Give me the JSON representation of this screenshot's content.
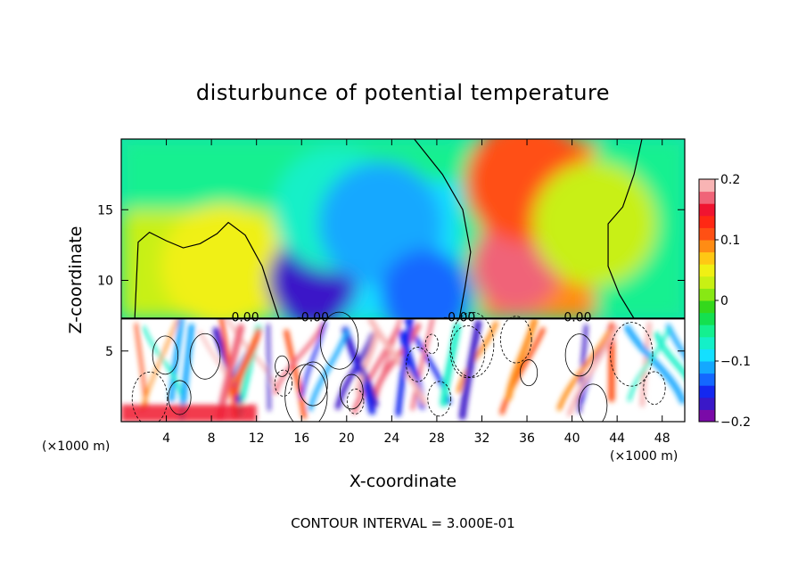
{
  "chart_data": {
    "type": "heatmap",
    "title": "disturbunce of potential temperature",
    "xlabel": "X-coordinate",
    "ylabel": "Z-coordinate",
    "x_unit_label": "(×1000 m)",
    "x_unit_label_right": "(×1000 m)",
    "xlim": [
      0,
      50
    ],
    "ylim": [
      0,
      20
    ],
    "xticks": [
      4,
      8,
      12,
      16,
      20,
      24,
      28,
      32,
      36,
      40,
      44,
      48
    ],
    "yticks": [
      5,
      10,
      15
    ],
    "colorbar": {
      "min": -0.2,
      "max": 0.2,
      "tick_labels": [
        "0.2",
        "0.1",
        "0",
        "−0.1",
        "−0.2"
      ],
      "tick_values": [
        0.2,
        0.1,
        0,
        -0.1,
        -0.2
      ],
      "colors": [
        "#7a0aa8",
        "#3a18c8",
        "#1428f0",
        "#1468ff",
        "#14a8ff",
        "#14e0ff",
        "#14f0c8",
        "#14f090",
        "#14e050",
        "#34d81c",
        "#88e814",
        "#c8f014",
        "#f0f014",
        "#ffc814",
        "#ff8c14",
        "#ff5014",
        "#ff2814",
        "#f01430",
        "#f06478",
        "#f8b4b4"
      ]
    },
    "contour_labels": [
      "0.00",
      "-0.00",
      "-0.00",
      "0.00"
    ],
    "annotation": "CONTOUR INTERVAL = 3.000E-01",
    "fields": {
      "upper_layer_anomalies": [
        {
          "x": 9,
          "z": 11,
          "value": 0.05
        },
        {
          "x": 17,
          "z": 10,
          "value": -0.17
        },
        {
          "x": 19,
          "z": 15,
          "value": -0.08
        },
        {
          "x": 23,
          "z": 14,
          "value": -0.12
        },
        {
          "x": 27,
          "z": 9,
          "value": -0.14
        },
        {
          "x": 35,
          "z": 11,
          "value": 0.17
        },
        {
          "x": 36,
          "z": 17,
          "value": 0.11
        },
        {
          "x": 42,
          "z": 14,
          "value": 0.03
        }
      ]
    }
  }
}
